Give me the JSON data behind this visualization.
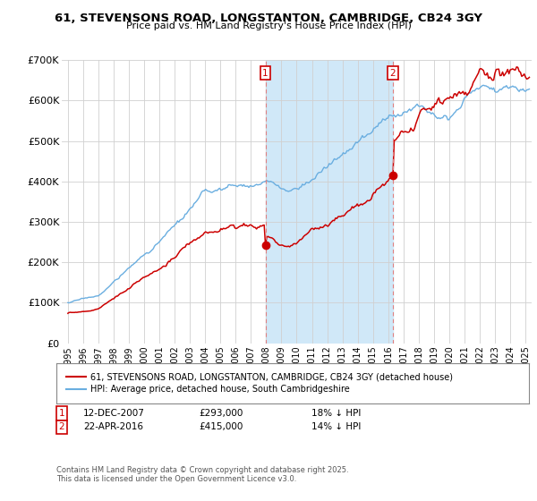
{
  "title": "61, STEVENSONS ROAD, LONGSTANTON, CAMBRIDGE, CB24 3GY",
  "subtitle": "Price paid vs. HM Land Registry's House Price Index (HPI)",
  "hpi_label": "HPI: Average price, detached house, South Cambridgeshire",
  "price_label": "61, STEVENSONS ROAD, LONGSTANTON, CAMBRIDGE, CB24 3GY (detached house)",
  "footer": "Contains HM Land Registry data © Crown copyright and database right 2025.\nThis data is licensed under the Open Government Licence v3.0.",
  "annotation1": {
    "label": "1",
    "date": "12-DEC-2007",
    "price": "£293,000",
    "hpi_note": "18% ↓ HPI",
    "x": 2007.95
  },
  "annotation2": {
    "label": "2",
    "date": "22-APR-2016",
    "price": "£415,000",
    "hpi_note": "14% ↓ HPI",
    "x": 2016.31
  },
  "hpi_color": "#6aaee0",
  "price_color": "#cc0000",
  "annotation_color": "#cc0000",
  "shade_color": "#d0e8f8",
  "background_color": "#ffffff",
  "ylim": [
    0,
    700000
  ],
  "xlim_start": 1994.6,
  "xlim_end": 2025.4,
  "yticks": [
    0,
    100000,
    200000,
    300000,
    400000,
    500000,
    600000,
    700000
  ],
  "ytick_labels": [
    "£0",
    "£100K",
    "£200K",
    "£300K",
    "£400K",
    "£500K",
    "£600K",
    "£700K"
  ],
  "sale1_price": 293000,
  "sale2_price": 415000,
  "sale1_year": 2007.95,
  "sale2_year": 2016.31
}
